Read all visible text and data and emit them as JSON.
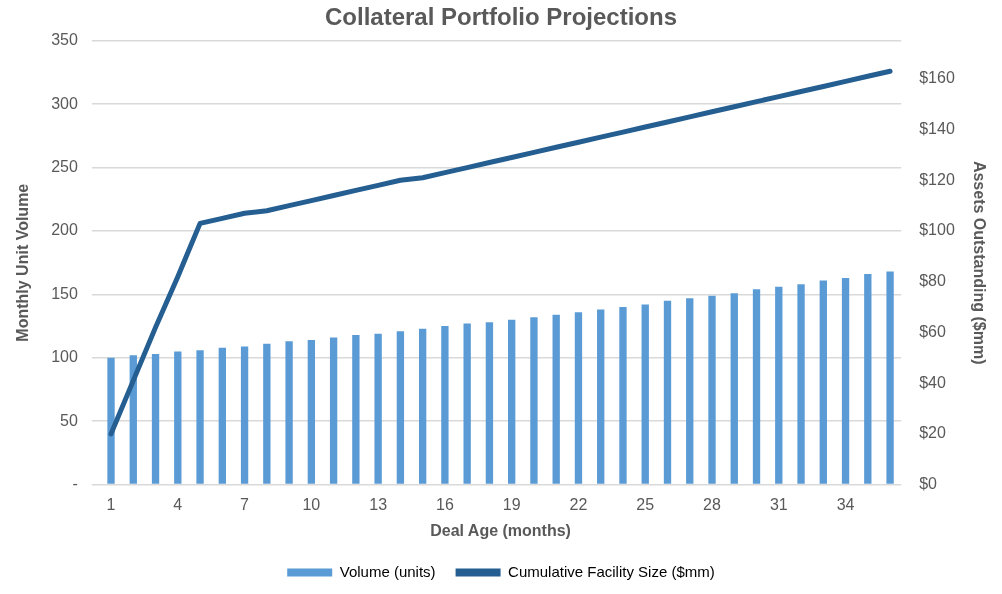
{
  "chart_data": {
    "type": "bar",
    "title": "Collateral Portfolio Projections",
    "xlabel": "Deal Age (months)",
    "ylabel": "Monthly Unit Volume",
    "y2label": "Assets Outstanding ($mm)",
    "categories": [
      "1",
      null,
      null,
      "4",
      null,
      null,
      "7",
      null,
      null,
      "10",
      null,
      null,
      "13",
      null,
      null,
      "16",
      null,
      null,
      "19",
      null,
      null,
      "22",
      null,
      null,
      "25",
      null,
      null,
      "28",
      null,
      null,
      "31",
      null,
      null,
      "34",
      null,
      null
    ],
    "series": [
      {
        "name": "Volume (units)",
        "color": "#5b9bd5",
        "values": [
          100,
          102,
          103,
          105,
          106,
          108,
          109,
          111,
          113,
          114,
          116,
          118,
          119,
          121,
          123,
          125,
          127,
          128,
          130,
          132,
          134,
          136,
          138,
          140,
          142,
          145,
          147,
          149,
          151,
          154,
          156,
          158,
          161,
          163,
          166,
          168
        ]
      },
      {
        "name": "Cumulative Facility Size ($mm)",
        "type": "line",
        "axis": "y2",
        "color": "#255e91",
        "values": [
          20,
          41,
          62,
          82,
          103,
          105,
          107,
          108,
          110,
          112,
          114,
          116,
          118,
          120,
          121,
          123,
          125,
          127,
          129,
          131,
          133,
          135,
          137,
          139,
          141,
          143,
          145,
          147,
          149,
          151,
          153,
          155,
          157,
          159,
          161,
          163
        ]
      }
    ],
    "ylim": [
      0,
      350
    ],
    "yticks": [
      {
        "value": 0,
        "label": "-"
      },
      50,
      100,
      150,
      200,
      250,
      300,
      350
    ],
    "y2lim": [
      0,
      175
    ],
    "y2ticks": [
      {
        "value": 0,
        "label": "$0"
      },
      {
        "value": 20,
        "label": "$20"
      },
      {
        "value": 40,
        "label": "$40"
      },
      {
        "value": 60,
        "label": "$60"
      },
      {
        "value": 80,
        "label": "$80"
      },
      {
        "value": 100,
        "label": "$100"
      },
      {
        "value": 120,
        "label": "$120"
      },
      {
        "value": 140,
        "label": "$140"
      },
      {
        "value": 160,
        "label": "$160"
      }
    ],
    "grid": "y",
    "legend": "bottom",
    "marker": "none"
  }
}
